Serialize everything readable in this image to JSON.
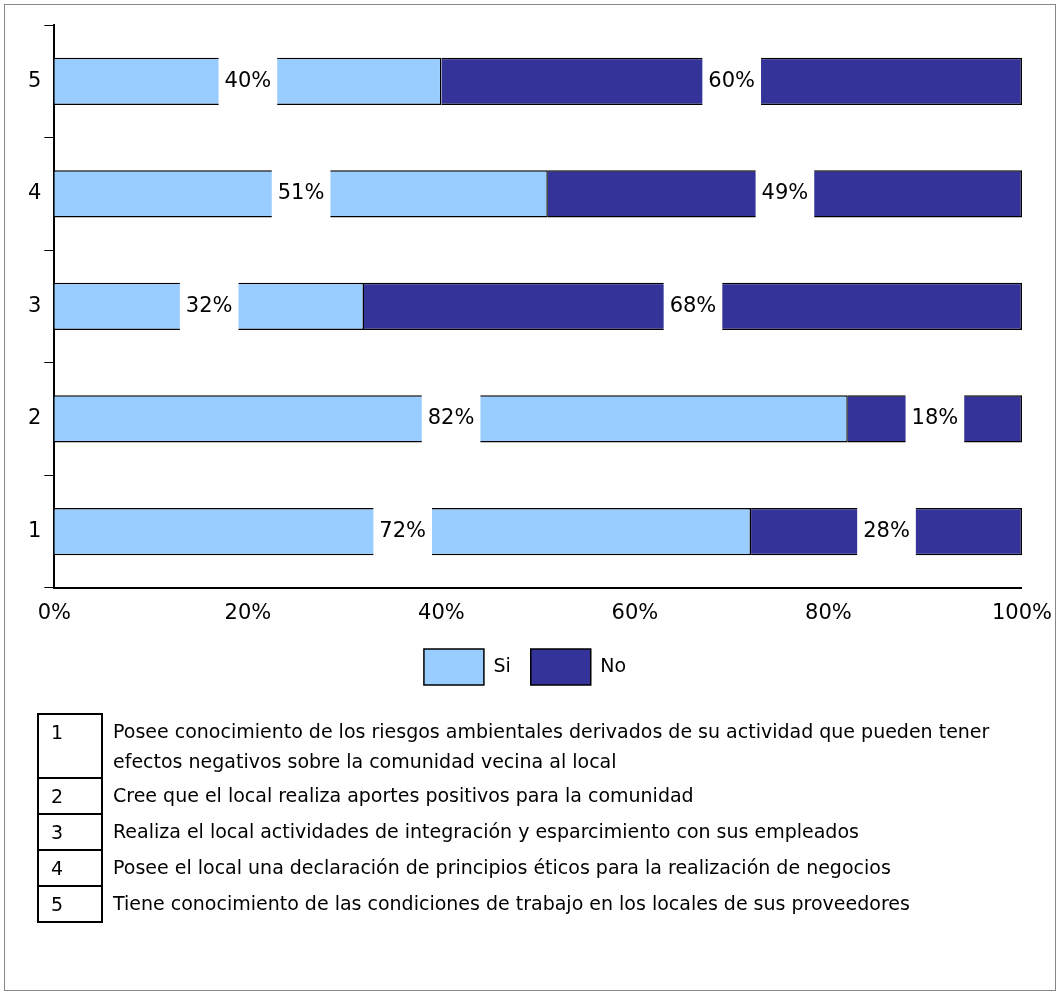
{
  "chart_data": {
    "type": "bar",
    "orientation": "horizontal",
    "stacked": true,
    "categories": [
      "5",
      "4",
      "3",
      "2",
      "1"
    ],
    "series": [
      {
        "name": "Si",
        "color": "#99ccff",
        "values": [
          40,
          51,
          32,
          82,
          72
        ],
        "value_labels": [
          "40%",
          "51%",
          "32%",
          "82%",
          "72%"
        ]
      },
      {
        "name": "No",
        "color": "#333399",
        "values": [
          60,
          49,
          68,
          18,
          28
        ],
        "value_labels": [
          "60%",
          "49%",
          "68%",
          "18%",
          "28%"
        ]
      }
    ],
    "xlim": [
      0,
      100
    ],
    "xticks": [
      {
        "value": 0,
        "label": "0%"
      },
      {
        "value": 20,
        "label": "20%"
      },
      {
        "value": 40,
        "label": "40%"
      },
      {
        "value": 60,
        "label": "60%"
      },
      {
        "value": 80,
        "label": "80%"
      },
      {
        "value": 100,
        "label": "100%"
      }
    ],
    "grid": false,
    "legend": "bottom",
    "annotations": [
      "1 Posee conocimiento de los riesgos ambientales derivados de su actividad que pueden tener efectos negativos sobre la comunidad vecina al local",
      "2 Cree que el local realiza aportes positivos para la comunidad",
      "3 Realiza el local actividades de integración y esparcimiento con sus empleados",
      "4 Posee el local una declaración de principios éticos para la realización de negocios",
      "5 Tiene conocimiento de las condiciones de trabajo en los locales de sus proveedores"
    ]
  }
}
